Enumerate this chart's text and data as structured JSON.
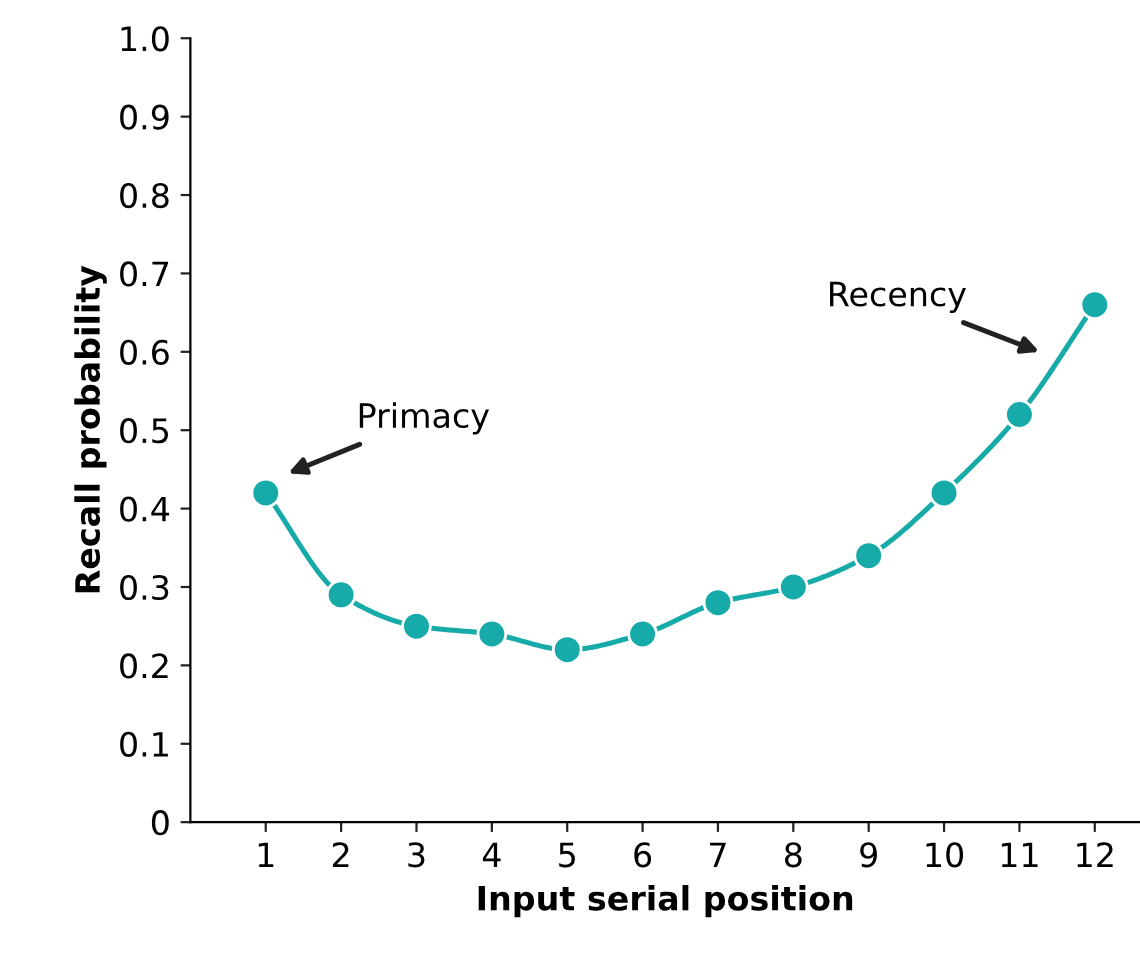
{
  "chart_data": {
    "type": "line",
    "xlabel": "Input serial position",
    "ylabel": "Recall probability",
    "x": [
      1,
      2,
      3,
      4,
      5,
      6,
      7,
      8,
      9,
      10,
      11,
      12
    ],
    "series": [
      {
        "color": "#16aaa8",
        "values": [
          0.42,
          0.29,
          0.25,
          0.24,
          0.22,
          0.24,
          0.28,
          0.3,
          0.34,
          0.42,
          0.52,
          0.66
        ]
      }
    ],
    "xlim": [
      0,
      12.6
    ],
    "xticks": [
      1,
      2,
      3,
      4,
      5,
      6,
      7,
      8,
      9,
      10,
      11,
      12
    ],
    "ylim": [
      0,
      1.0
    ],
    "yticks": [
      0,
      0.1,
      0.2,
      0.3,
      0.4,
      0.5,
      0.6,
      0.7,
      0.8,
      0.9,
      {
        "value": 1.0,
        "label": "1.0"
      }
    ],
    "marker": "circle",
    "line_style": "solid",
    "grid": false,
    "legend": false,
    "annotations": [
      "Primacy",
      "Recency"
    ]
  }
}
